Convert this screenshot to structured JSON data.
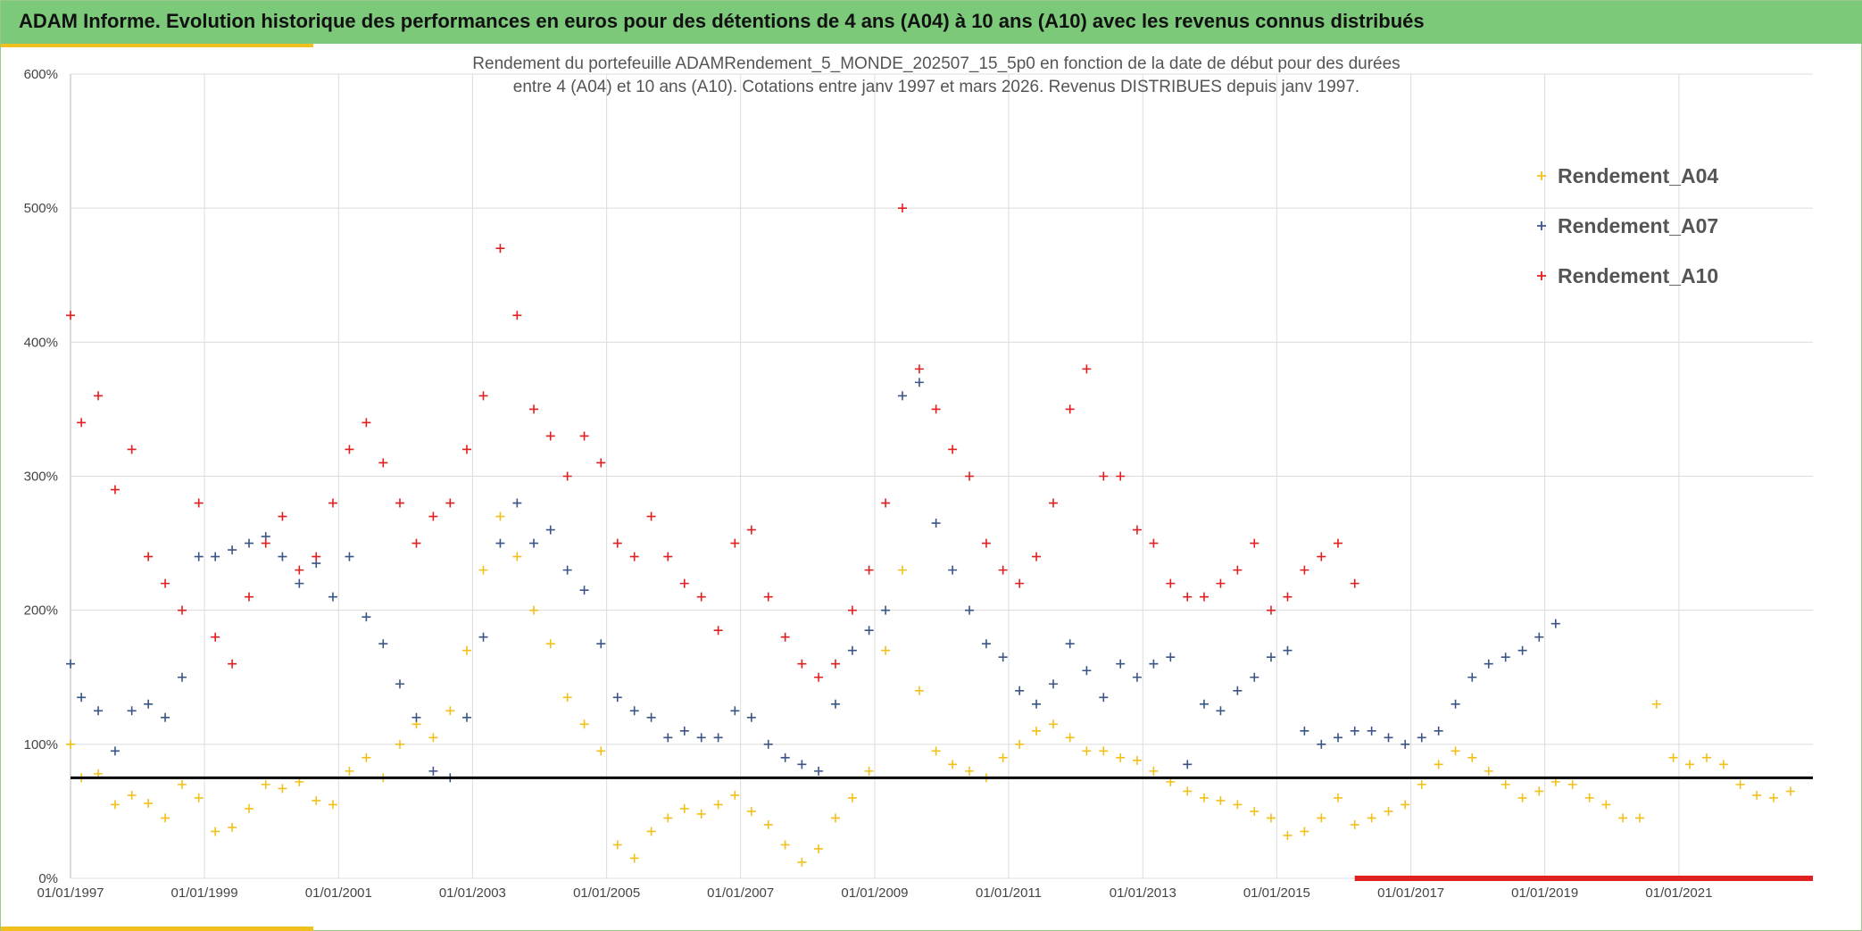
{
  "banner": {
    "title": "ADAM Informe. Evolution historique des performances en euros pour des détentions de 4 ans (A04) à 10 ans (A10) avec les revenus connus distribués"
  },
  "colors": {
    "banner_bg": "#7cc97a",
    "accent": "#f2c01c",
    "A04": "#f2c01c",
    "A07": "#3a5586",
    "A10": "#e02020",
    "reference_line": "#000000",
    "bottom_band": "#e02020"
  },
  "chart_data": {
    "type": "scatter",
    "title_line1": "Rendement du portefeuille ADAMRendement_5_MONDE_202507_15_5p0  en fonction de la date de début pour des durées",
    "title_line2": "entre 4 (A04) et 10 ans (A10). Cotations entre janv 1997 et mars 2026. Revenus DISTRIBUES depuis janv 1997.",
    "marker": "+",
    "x_start": "1997-01-01",
    "x_end": "2023-01-01",
    "x_ticks": [
      "01/01/1997",
      "01/01/1999",
      "01/01/2001",
      "01/01/2003",
      "01/01/2005",
      "01/01/2007",
      "01/01/2009",
      "01/01/2011",
      "01/01/2013",
      "01/01/2015",
      "01/01/2017",
      "01/01/2019",
      "01/01/2021"
    ],
    "y_ticks": [
      "0%",
      "100%",
      "200%",
      "300%",
      "400%",
      "500%",
      "600%"
    ],
    "ylim": [
      0,
      600
    ],
    "grid": true,
    "legend_position": "top-right",
    "reference_line_y": 75,
    "bottom_band_range": [
      "2016-03-01",
      "2023-01-01"
    ],
    "series": [
      {
        "name": "Rendement_A04",
        "x": [
          "1997-01-01",
          "1997-03-01",
          "1997-06-01",
          "1997-09-01",
          "1997-12-01",
          "1998-03-01",
          "1998-06-01",
          "1998-09-01",
          "1998-12-01",
          "1999-03-01",
          "1999-06-01",
          "1999-09-01",
          "1999-12-01",
          "2000-03-01",
          "2000-06-01",
          "2000-09-01",
          "2000-12-01",
          "2001-03-01",
          "2001-06-01",
          "2001-09-01",
          "2001-12-01",
          "2002-03-01",
          "2002-06-01",
          "2002-09-01",
          "2002-12-01",
          "2003-03-01",
          "2003-06-01",
          "2003-09-01",
          "2003-12-01",
          "2004-03-01",
          "2004-06-01",
          "2004-09-01",
          "2004-12-01",
          "2005-03-01",
          "2005-06-01",
          "2005-09-01",
          "2005-12-01",
          "2006-03-01",
          "2006-06-01",
          "2006-09-01",
          "2006-12-01",
          "2007-03-01",
          "2007-06-01",
          "2007-09-01",
          "2007-12-01",
          "2008-03-01",
          "2008-06-01",
          "2008-09-01",
          "2008-12-01",
          "2009-03-01",
          "2009-06-01",
          "2009-09-01",
          "2009-12-01",
          "2010-03-01",
          "2010-06-01",
          "2010-09-01",
          "2010-12-01",
          "2011-03-01",
          "2011-06-01",
          "2011-09-01",
          "2011-12-01",
          "2012-03-01",
          "2012-06-01",
          "2012-09-01",
          "2012-12-01",
          "2013-03-01",
          "2013-06-01",
          "2013-09-01",
          "2013-12-01",
          "2014-03-01",
          "2014-06-01",
          "2014-09-01",
          "2014-12-01",
          "2015-03-01",
          "2015-06-01",
          "2015-09-01",
          "2015-12-01",
          "2016-03-01",
          "2016-06-01",
          "2016-09-01",
          "2016-12-01",
          "2017-03-01",
          "2017-06-01",
          "2017-09-01",
          "2017-12-01",
          "2018-03-01",
          "2018-06-01",
          "2018-09-01",
          "2018-12-01",
          "2019-03-01",
          "2019-06-01",
          "2019-09-01",
          "2019-12-01",
          "2020-03-01",
          "2020-06-01",
          "2020-09-01",
          "2020-12-01",
          "2021-03-01",
          "2021-06-01",
          "2021-09-01",
          "2021-12-01",
          "2022-03-01",
          "2022-06-01",
          "2022-09-01"
        ],
        "y": [
          100,
          75,
          78,
          55,
          62,
          56,
          45,
          70,
          60,
          35,
          38,
          52,
          70,
          67,
          72,
          58,
          55,
          80,
          90,
          75,
          100,
          115,
          105,
          125,
          170,
          230,
          270,
          240,
          200,
          175,
          135,
          115,
          95,
          25,
          15,
          35,
          45,
          52,
          48,
          55,
          62,
          50,
          40,
          25,
          12,
          22,
          45,
          60,
          80,
          170,
          230,
          140,
          95,
          85,
          80,
          75,
          90,
          100,
          110,
          115,
          105,
          95,
          95,
          90,
          88,
          80,
          72,
          65,
          60,
          58,
          55,
          50,
          45,
          32,
          35,
          45,
          60,
          40,
          45,
          50,
          55,
          70,
          85,
          95,
          90,
          80,
          70,
          60,
          65,
          72,
          70,
          60,
          55,
          45,
          45,
          130,
          90,
          85,
          90,
          85,
          70,
          62,
          60,
          65
        ]
      },
      {
        "name": "Rendement_A07",
        "x": [
          "1997-01-01",
          "1997-03-01",
          "1997-06-01",
          "1997-09-01",
          "1997-12-01",
          "1998-03-01",
          "1998-06-01",
          "1998-09-01",
          "1998-12-01",
          "1999-03-01",
          "1999-06-01",
          "1999-09-01",
          "1999-12-01",
          "2000-03-01",
          "2000-06-01",
          "2000-09-01",
          "2000-12-01",
          "2001-03-01",
          "2001-06-01",
          "2001-09-01",
          "2001-12-01",
          "2002-03-01",
          "2002-06-01",
          "2002-09-01",
          "2002-12-01",
          "2003-03-01",
          "2003-06-01",
          "2003-09-01",
          "2003-12-01",
          "2004-03-01",
          "2004-06-01",
          "2004-09-01",
          "2004-12-01",
          "2005-03-01",
          "2005-06-01",
          "2005-09-01",
          "2005-12-01",
          "2006-03-01",
          "2006-06-01",
          "2006-09-01",
          "2006-12-01",
          "2007-03-01",
          "2007-06-01",
          "2007-09-01",
          "2007-12-01",
          "2008-03-01",
          "2008-06-01",
          "2008-09-01",
          "2008-12-01",
          "2009-03-01",
          "2009-06-01",
          "2009-09-01",
          "2009-12-01",
          "2010-03-01",
          "2010-06-01",
          "2010-09-01",
          "2010-12-01",
          "2011-03-01",
          "2011-06-01",
          "2011-09-01",
          "2011-12-01",
          "2012-03-01",
          "2012-06-01",
          "2012-09-01",
          "2012-12-01",
          "2013-03-01",
          "2013-06-01",
          "2013-09-01",
          "2013-12-01",
          "2014-03-01",
          "2014-06-01",
          "2014-09-01",
          "2014-12-01",
          "2015-03-01",
          "2015-06-01",
          "2015-09-01",
          "2015-12-01",
          "2016-03-01",
          "2016-06-01",
          "2016-09-01",
          "2016-12-01",
          "2017-03-01",
          "2017-06-01",
          "2017-09-01",
          "2017-12-01",
          "2018-03-01",
          "2018-06-01",
          "2018-09-01",
          "2018-12-01",
          "2019-03-01"
        ],
        "y": [
          160,
          135,
          125,
          95,
          125,
          130,
          120,
          150,
          240,
          240,
          245,
          250,
          255,
          240,
          220,
          235,
          210,
          240,
          195,
          175,
          145,
          120,
          80,
          75,
          120,
          180,
          250,
          280,
          250,
          260,
          230,
          215,
          175,
          135,
          125,
          120,
          105,
          110,
          105,
          105,
          125,
          120,
          100,
          90,
          85,
          80,
          130,
          170,
          185,
          200,
          360,
          370,
          265,
          230,
          200,
          175,
          165,
          140,
          130,
          145,
          175,
          155,
          135,
          160,
          150,
          160,
          165,
          85,
          130,
          125,
          140,
          150,
          165,
          170,
          110,
          100,
          105,
          110,
          110,
          105,
          100,
          105,
          110,
          130,
          150,
          160,
          165,
          170,
          180,
          190
        ]
      },
      {
        "name": "Rendement_A10",
        "x": [
          "1997-01-01",
          "1997-03-01",
          "1997-06-01",
          "1997-09-01",
          "1997-12-01",
          "1998-03-01",
          "1998-06-01",
          "1998-09-01",
          "1998-12-01",
          "1999-03-01",
          "1999-06-01",
          "1999-09-01",
          "1999-12-01",
          "2000-03-01",
          "2000-06-01",
          "2000-09-01",
          "2000-12-01",
          "2001-03-01",
          "2001-06-01",
          "2001-09-01",
          "2001-12-01",
          "2002-03-01",
          "2002-06-01",
          "2002-09-01",
          "2002-12-01",
          "2003-03-01",
          "2003-06-01",
          "2003-09-01",
          "2003-12-01",
          "2004-03-01",
          "2004-06-01",
          "2004-09-01",
          "2004-12-01",
          "2005-03-01",
          "2005-06-01",
          "2005-09-01",
          "2005-12-01",
          "2006-03-01",
          "2006-06-01",
          "2006-09-01",
          "2006-12-01",
          "2007-03-01",
          "2007-06-01",
          "2007-09-01",
          "2007-12-01",
          "2008-03-01",
          "2008-06-01",
          "2008-09-01",
          "2008-12-01",
          "2009-03-01",
          "2009-06-01",
          "2009-09-01",
          "2009-12-01",
          "2010-03-01",
          "2010-06-01",
          "2010-09-01",
          "2010-12-01",
          "2011-03-01",
          "2011-06-01",
          "2011-09-01",
          "2011-12-01",
          "2012-03-01",
          "2012-06-01",
          "2012-09-01",
          "2012-12-01",
          "2013-03-01",
          "2013-06-01",
          "2013-09-01",
          "2013-12-01",
          "2014-03-01",
          "2014-06-01",
          "2014-09-01",
          "2014-12-01",
          "2015-03-01",
          "2015-06-01",
          "2015-09-01",
          "2015-12-01",
          "2016-03-01"
        ],
        "y": [
          420,
          340,
          360,
          290,
          320,
          240,
          220,
          200,
          280,
          180,
          160,
          210,
          250,
          270,
          230,
          240,
          280,
          320,
          340,
          310,
          280,
          250,
          270,
          280,
          320,
          360,
          470,
          420,
          350,
          330,
          300,
          330,
          310,
          250,
          240,
          270,
          240,
          220,
          210,
          185,
          250,
          260,
          210,
          180,
          160,
          150,
          160,
          200,
          230,
          280,
          500,
          380,
          350,
          320,
          300,
          250,
          230,
          220,
          240,
          280,
          350,
          380,
          300,
          300,
          260,
          250,
          220,
          210,
          210,
          220,
          230,
          250,
          200,
          210,
          230,
          240,
          250,
          220
        ]
      }
    ]
  }
}
